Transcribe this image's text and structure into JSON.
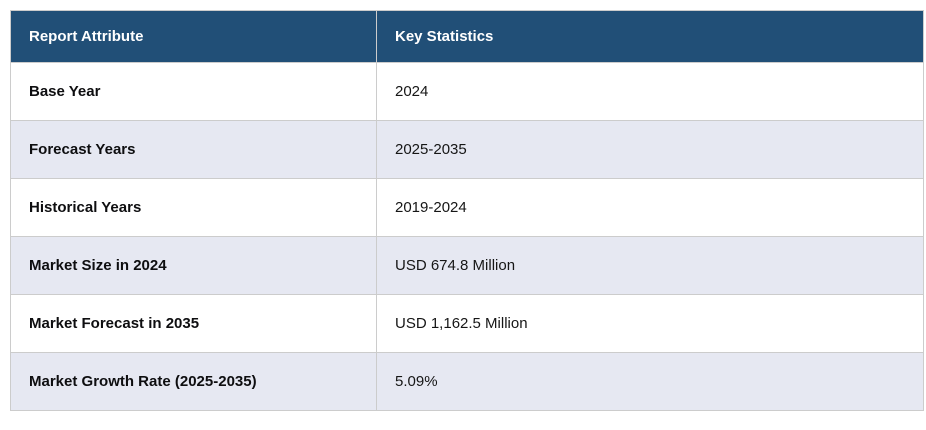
{
  "table": {
    "columns": [
      {
        "label": "Report Attribute"
      },
      {
        "label": "Key Statistics"
      }
    ],
    "rows": [
      {
        "attribute": "Base Year",
        "value": "2024"
      },
      {
        "attribute": "Forecast Years",
        "value": "2025-2035"
      },
      {
        "attribute": "Historical Years",
        "value": "2019-2024"
      },
      {
        "attribute": "Market Size in 2024",
        "value": "USD 674.8 Million"
      },
      {
        "attribute": "Market Forecast in 2035",
        "value": "USD 1,162.5 Million"
      },
      {
        "attribute": "Market Growth Rate (2025-2035)",
        "value": "5.09%"
      }
    ],
    "colors": {
      "header_bg": "#214F77",
      "stripe_bg": "#E6E8F2",
      "row_bg": "#FFFFFF",
      "border": "#CCCCCC",
      "header_text": "#FFFFFF",
      "label_text": "#0E0E10",
      "value_text": "#161616"
    }
  }
}
